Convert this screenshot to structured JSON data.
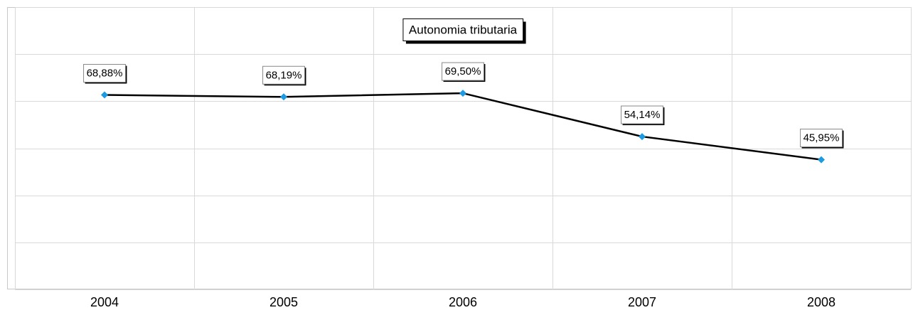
{
  "chart_data": {
    "type": "line",
    "title": "Autonomia tributaria",
    "categories": [
      "2004",
      "2005",
      "2006",
      "2007",
      "2008"
    ],
    "series": [
      {
        "color": "#000000",
        "marker_color": "#1e9be0",
        "values": [
          68.88,
          68.19,
          69.5,
          54.14,
          45.95
        ],
        "value_labels": [
          "68,88%",
          "68,19%",
          "69,50%",
          "54,14%",
          "45,95%"
        ]
      }
    ],
    "ylim": [
      0,
      100
    ],
    "yticks": [
      0,
      16.67,
      33.33,
      50,
      66.67,
      83.33,
      100
    ],
    "grid": true
  }
}
